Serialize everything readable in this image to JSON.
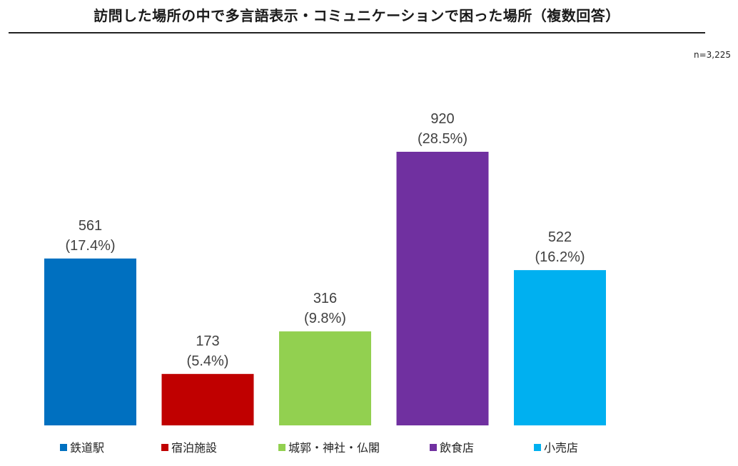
{
  "title": "訪問した場所の中で多言語表示・コミュニケーションで困った場所（複数回答）",
  "sample_size": "n=3,225",
  "chart_data": {
    "type": "bar",
    "categories": [
      "鉄道駅",
      "宿泊施設",
      "城郭・神社・仏閣",
      "飲食店",
      "小売店"
    ],
    "values": [
      561,
      173,
      316,
      920,
      522
    ],
    "percent_labels": [
      "(17.4%)",
      "(5.4%)",
      "(9.8%)",
      "(28.5%)",
      "(16.2%)"
    ],
    "colors": [
      "#0070C0",
      "#C00000",
      "#92D050",
      "#7030A0",
      "#00B0F0"
    ],
    "ylim": [
      0,
      1000
    ],
    "grid": false,
    "legend_position": "bottom",
    "xlabel": "",
    "ylabel": ""
  }
}
